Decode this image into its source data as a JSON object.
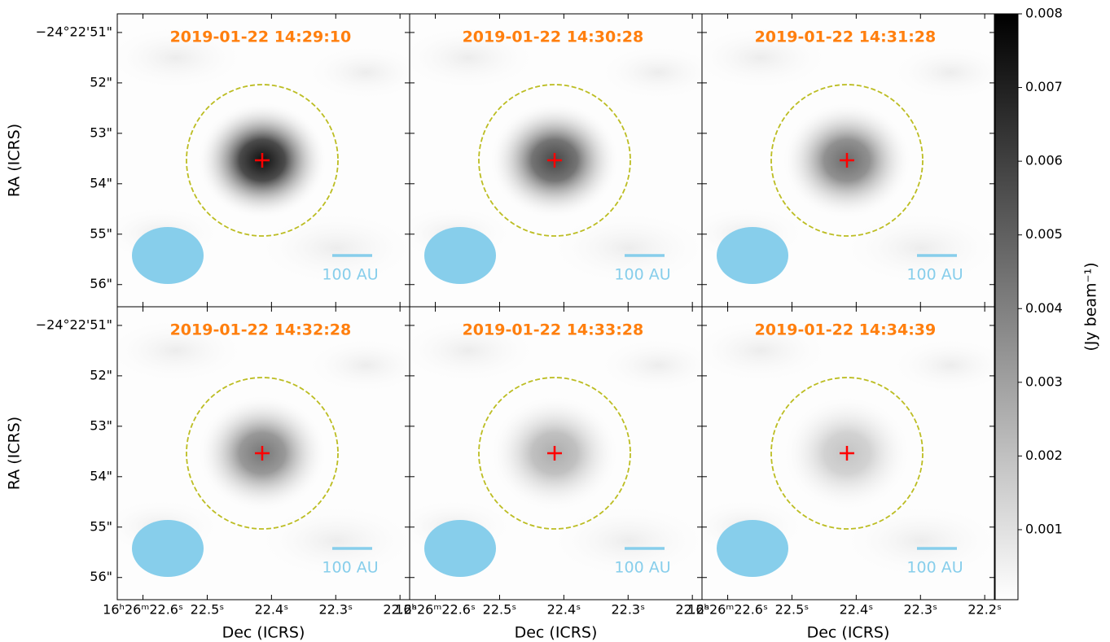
{
  "chart_data": {
    "type": "heatmap",
    "xlabel": "Dec (ICRS)",
    "ylabel": "RA (ICRS)",
    "colorbar_label": "(Jy beam⁻¹)",
    "scale_bar_label": "100 AU",
    "cmap": "gray_r",
    "title_color": "#ff7f0e",
    "marker_color": "#ff0000",
    "aperture_color": "#bcbd22",
    "beam_color": "#87ceeb",
    "xlim": [
      22.64,
      22.185
    ],
    "xticks": [
      {
        "value": 22.6,
        "label": "16ʰ26ᵐ22.6ˢ"
      },
      {
        "value": 22.5,
        "label": "22.5ˢ"
      },
      {
        "value": 22.4,
        "label": "22.4ˢ"
      },
      {
        "value": 22.3,
        "label": "22.3ˢ"
      },
      {
        "value": 22.2,
        "label": "22.2ˢ"
      }
    ],
    "ylim": [
      56.44,
      50.63
    ],
    "yticks": [
      {
        "value": 51,
        "label": "−24°22'51\""
      },
      {
        "value": 52,
        "label": "52\""
      },
      {
        "value": 53,
        "label": "53\""
      },
      {
        "value": 54,
        "label": "54\""
      },
      {
        "value": 55,
        "label": "55\""
      },
      {
        "value": 56,
        "label": "56\""
      }
    ],
    "clim": [
      5e-05,
      0.008
    ],
    "cticks": [
      0.001,
      0.002,
      0.003,
      0.004,
      0.005,
      0.006,
      0.007,
      0.008
    ],
    "panels": [
      {
        "title": "2019-01-22 14:29:10",
        "peak": 0.0075
      },
      {
        "title": "2019-01-22 14:30:28",
        "peak": 0.0058
      },
      {
        "title": "2019-01-22 14:31:28",
        "peak": 0.0046
      },
      {
        "title": "2019-01-22 14:32:28",
        "peak": 0.0043
      },
      {
        "title": "2019-01-22 14:33:28",
        "peak": 0.0026
      },
      {
        "title": "2019-01-22 14:34:39",
        "peak": 0.0019
      }
    ]
  }
}
